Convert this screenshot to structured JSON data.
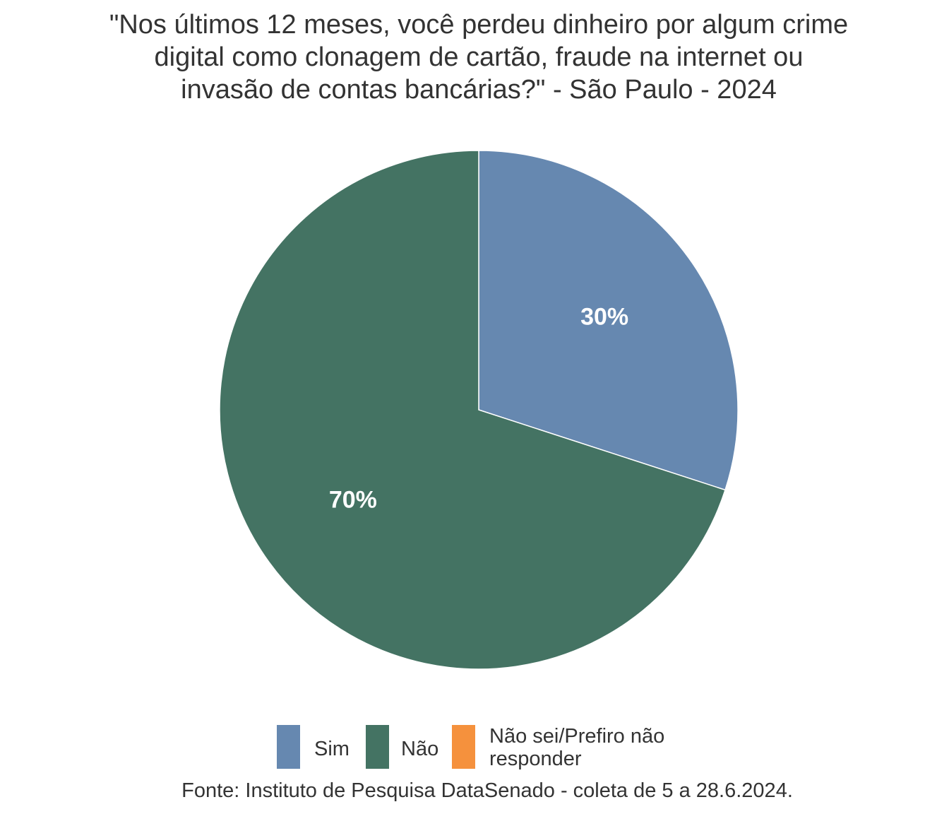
{
  "chart_data": {
    "type": "pie",
    "title_lines": [
      "\"Nos últimos 12 meses, você perdeu dinheiro por algum crime",
      "digital como clonagem de cartão, fraude na internet ou",
      "invasão de contas bancárias?\" - São Paulo - 2024"
    ],
    "slices": [
      {
        "label": "Sim",
        "value": 30,
        "value_label": "30%",
        "color": "#6688b0"
      },
      {
        "label": "Não",
        "value": 70,
        "value_label": "70%",
        "color": "#447363"
      },
      {
        "label": "Não sei/Prefiro não responder",
        "value": 0,
        "value_label": "",
        "color": "#f5913d"
      }
    ],
    "legend": {
      "position": "bottom",
      "items": [
        {
          "lines": [
            "Sim"
          ],
          "color": "#6688b0"
        },
        {
          "lines": [
            "Não"
          ],
          "color": "#447363"
        },
        {
          "lines": [
            "Não sei/Prefiro não",
            "responder"
          ],
          "color": "#f5913d"
        }
      ]
    },
    "source": "Fonte: Instituto de Pesquisa DataSenado - coleta de 5 a 28.6.2024."
  }
}
